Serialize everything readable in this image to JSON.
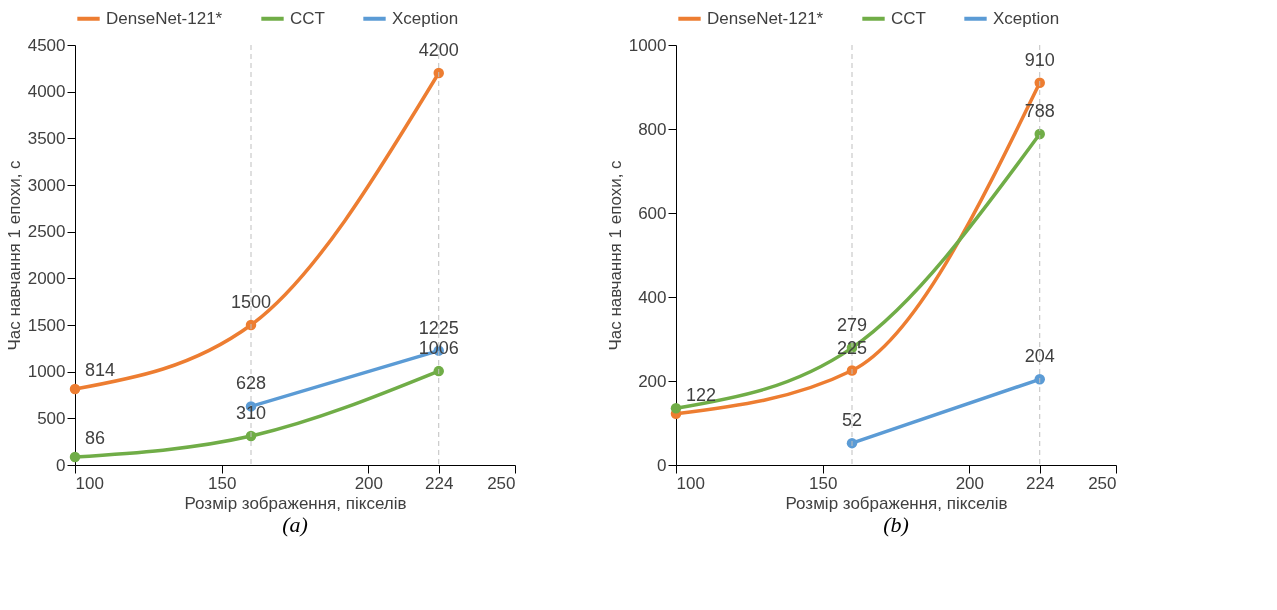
{
  "chart_data": [
    {
      "type": "line",
      "xlabel": "Розмір зображення, пікселів",
      "ylabel": "Час навчання 1 епохи, с",
      "xlim": [
        100,
        250
      ],
      "xticks": [
        100,
        150,
        200,
        224,
        250
      ],
      "ylim": [
        0,
        4500
      ],
      "yticks": [
        0,
        500,
        1000,
        1500,
        2000,
        2500,
        3000,
        3500,
        4000,
        4500
      ],
      "grid": false,
      "legend": "top",
      "marker": "circle",
      "line_style": "solid",
      "data_labels": true,
      "annotations": [
        "(a)"
      ],
      "ref_lines": [
        {
          "axis": "x",
          "value": 160,
          "color": "#bfbfbf",
          "line_style": "dashed"
        },
        {
          "axis": "x",
          "value": 224,
          "color": "#bfbfbf",
          "line_style": "dashed"
        }
      ],
      "series": [
        {
          "name": "DenseNet-121*",
          "color": "#ed7d31",
          "x": [
            100,
            160,
            224
          ],
          "values": [
            814,
            1500,
            4200
          ]
        },
        {
          "name": "CCT",
          "color": "#70ad47",
          "x": [
            100,
            160,
            224
          ],
          "values": [
            86,
            310,
            1006
          ]
        },
        {
          "name": "Xception",
          "color": "#5b9bd5",
          "x": [
            160,
            224
          ],
          "values": [
            628,
            1225
          ]
        }
      ]
    },
    {
      "type": "line",
      "xlabel": "Розмір зображення, пікселів",
      "ylabel": "Час навчання 1 епохи, с",
      "xlim": [
        100,
        250
      ],
      "xticks": [
        100,
        150,
        200,
        224,
        250
      ],
      "ylim": [
        0,
        1000
      ],
      "yticks": [
        0,
        200,
        400,
        600,
        800,
        1000
      ],
      "grid": false,
      "legend": "top",
      "marker": "circle",
      "line_style": "solid",
      "annotations": [
        "(b)"
      ],
      "ref_lines": [
        {
          "axis": "x",
          "value": 160,
          "color": "#bfbfbf",
          "line_style": "dashed"
        },
        {
          "axis": "x",
          "value": 224,
          "color": "#bfbfbf",
          "line_style": "dashed"
        }
      ],
      "series": [
        {
          "name": "DenseNet-121*",
          "color": "#ed7d31",
          "x": [
            100,
            160,
            224
          ],
          "values": [
            122,
            225,
            910
          ],
          "value_labels": [
            "122",
            "225",
            "910"
          ]
        },
        {
          "name": "CCT",
          "color": "#70ad47",
          "x": [
            100,
            160,
            224
          ],
          "values": [
            135,
            279,
            788
          ],
          "value_labels": [
            null,
            "279",
            "788"
          ]
        },
        {
          "name": "Xception",
          "color": "#5b9bd5",
          "x": [
            160,
            224
          ],
          "values": [
            52,
            204
          ],
          "value_labels": [
            "52",
            "204"
          ]
        }
      ]
    }
  ]
}
